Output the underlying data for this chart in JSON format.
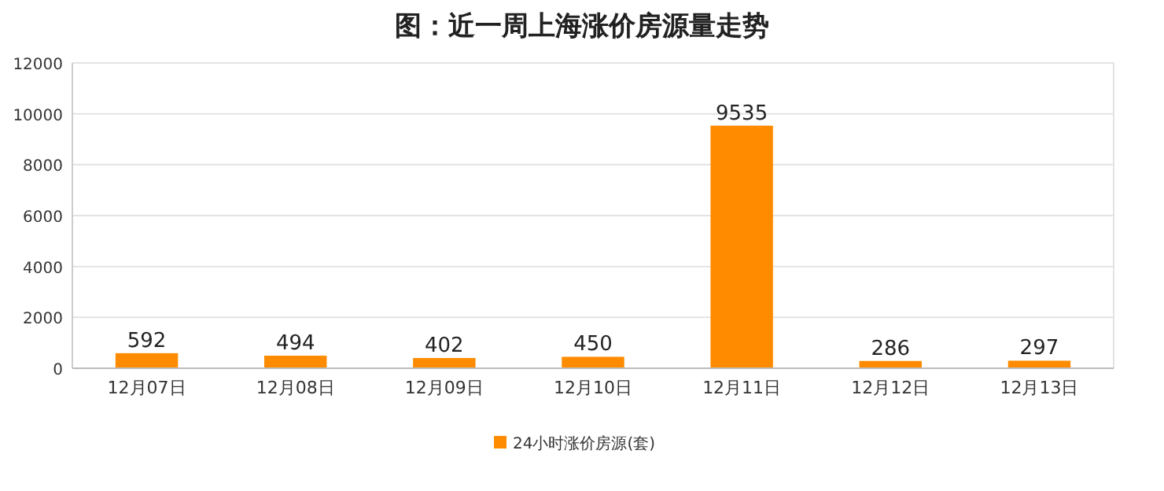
{
  "chart_data": {
    "type": "bar",
    "title": "图：近一周上海涨价房源量走势",
    "categories": [
      "12月07日",
      "12月08日",
      "12月09日",
      "12月10日",
      "12月11日",
      "12月12日",
      "12月13日"
    ],
    "series": [
      {
        "name": "24小时涨价房源(套)",
        "color": "#ff8c00",
        "values": [
          592,
          494,
          402,
          450,
          9535,
          286,
          297
        ]
      }
    ],
    "ylim": [
      0,
      12000
    ],
    "yticks": [
      0,
      2000,
      4000,
      6000,
      8000,
      10000,
      12000
    ],
    "grid": "y",
    "legend": "bottom",
    "data_labels": true
  }
}
